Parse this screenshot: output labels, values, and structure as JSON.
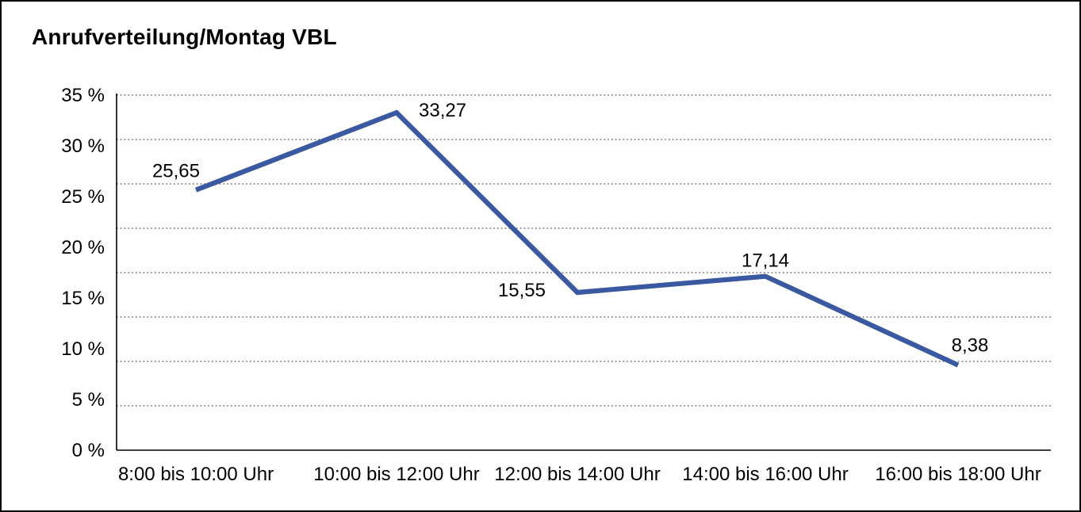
{
  "title": "Anrufverteilung/Montag VBL",
  "chart_data": {
    "type": "line",
    "title": "Anrufverteilung/Montag VBL",
    "categories": [
      "8:00 bis 10:00 Uhr",
      "10:00 bis 12:00 Uhr",
      "12:00 bis 14:00 Uhr",
      "14:00 bis 16:00 Uhr",
      "16:00 bis 18:00 Uhr"
    ],
    "values": [
      25.65,
      33.27,
      15.55,
      17.14,
      8.38
    ],
    "value_labels": [
      "25,65",
      "33,27",
      "15,55",
      "17,14",
      "8,38"
    ],
    "unit": "%",
    "xlabel": "",
    "ylabel": "",
    "ylim": [
      0,
      35
    ],
    "ytick_step": 5,
    "ytick_labels": [
      "0 %",
      "5 %",
      "10 %",
      "15 %",
      "20 %",
      "25 %",
      "30 %",
      "35 %"
    ],
    "grid": "horizontal-dotted",
    "gridline_count": 8,
    "legend": "none",
    "line_color": "#3A59A1",
    "grid_color": "#4a4a4a",
    "axis_color": "#000000",
    "text_color": "#000000"
  }
}
